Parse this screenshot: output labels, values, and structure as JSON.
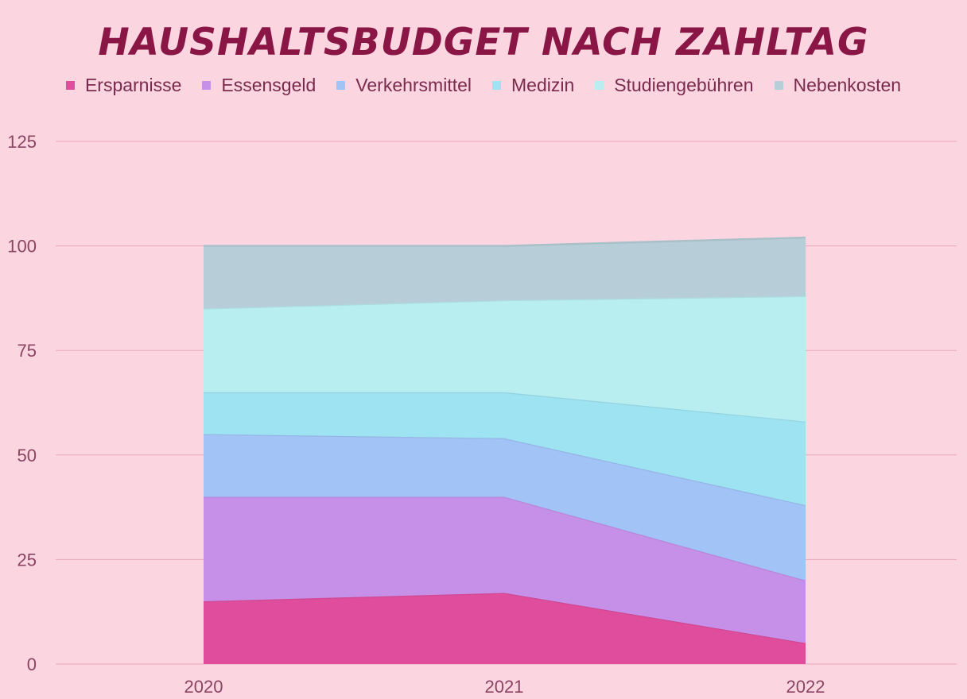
{
  "chart_data": {
    "type": "area",
    "stacked": true,
    "title": "HAUSHALTSBUDGET NACH ZAHLTAG",
    "xlabel": "",
    "ylabel": "",
    "categories": [
      "2020",
      "2021",
      "2022"
    ],
    "ylim": [
      0,
      125
    ],
    "yticks": [
      "0",
      "25",
      "50",
      "75",
      "100",
      "125"
    ],
    "grid": true,
    "legend_position": "top",
    "series": [
      {
        "name": "Ersparnisse",
        "values": [
          15,
          17,
          5
        ],
        "color": "#e04d9c"
      },
      {
        "name": "Essensgeld",
        "values": [
          25,
          23,
          15
        ],
        "color": "#c690e8"
      },
      {
        "name": "Verkehrsmittel",
        "values": [
          15,
          14,
          18
        ],
        "color": "#a1c3f6"
      },
      {
        "name": "Medizin",
        "values": [
          10,
          11,
          20
        ],
        "color": "#9ee3f2"
      },
      {
        "name": "Studiengebühren",
        "values": [
          20,
          22,
          30
        ],
        "color": "#b9eef0"
      },
      {
        "name": "Nebenkosten",
        "values": [
          15,
          13,
          14
        ],
        "color": "#b7ced8"
      }
    ]
  },
  "colors": {
    "background": "#fbd6e1",
    "title": "#8a1646",
    "gridline": "#eaa6bf",
    "tick_text": "#8a4462"
  }
}
